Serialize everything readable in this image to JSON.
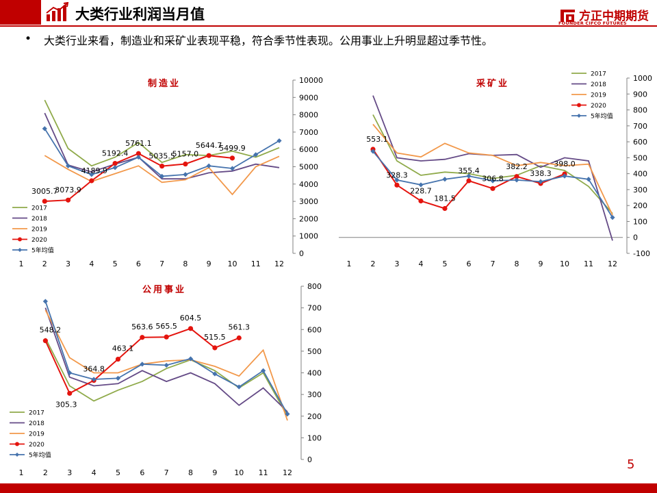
{
  "header": {
    "title": "大类行业利润当月值",
    "page_number": "5"
  },
  "logo": {
    "cn": "方正中期期货",
    "en": "FOUNDER CIFCO FUTURES"
  },
  "bullet": {
    "symbol": "•",
    "text": "大类行业来看，制造业和采矿业表现平稳，符合季节性表现。公用事业上升明显超过季节性。"
  },
  "colors": {
    "y2017": "#8faa4a",
    "y2018": "#644a86",
    "y2019": "#f2984a",
    "y2020": "#e4140e",
    "avg": "#4573ad",
    "accent": "#c00000"
  },
  "chart_data": [
    {
      "type": "line",
      "title": "制造业",
      "categories": [
        "1",
        "2",
        "3",
        "4",
        "5",
        "6",
        "7",
        "8",
        "9",
        "10",
        "11",
        "12"
      ],
      "ylim": [
        0,
        10000
      ],
      "yticks": [
        "0",
        "1000",
        "2000",
        "3000",
        "4000",
        "5000",
        "6000",
        "7000",
        "8000",
        "9000",
        "10000"
      ],
      "legend": "bottom-left",
      "series": [
        {
          "name": "2017",
          "values": [
            null,
            8850,
            6050,
            5050,
            5550,
            6400,
            5250,
            5700,
            5650,
            5900,
            5550,
            6100
          ]
        },
        {
          "name": "2018",
          "values": [
            null,
            8100,
            5100,
            4700,
            5150,
            5550,
            4300,
            4300,
            4650,
            4750,
            5150,
            4950
          ]
        },
        {
          "name": "2019",
          "values": [
            null,
            5650,
            4850,
            4150,
            4600,
            5050,
            4100,
            4250,
            4950,
            3400,
            5000,
            5600
          ]
        },
        {
          "name": "2020",
          "values": [
            null,
            3005.7,
            3073.9,
            4189.9,
            5192.4,
            5761.1,
            5035.5,
            5157.0,
            5644.7,
            5499.9,
            null,
            null
          ],
          "labels": [
            "",
            "3005.7",
            "3073.9",
            "4189.9",
            "5192.4",
            "5761.1",
            "5035.5",
            "5157.0",
            "5644.7",
            "5499.9",
            "",
            ""
          ]
        },
        {
          "name": "5年均值",
          "values": [
            null,
            7200,
            5050,
            4550,
            4950,
            5550,
            4450,
            4550,
            5050,
            4900,
            5700,
            6500
          ]
        }
      ]
    },
    {
      "type": "line",
      "title": "采矿业",
      "categories": [
        "1",
        "2",
        "3",
        "4",
        "5",
        "6",
        "7",
        "8",
        "9",
        "10",
        "11",
        "12"
      ],
      "ylim": [
        -100,
        1000
      ],
      "yticks": [
        "-100",
        "0",
        "100",
        "200",
        "300",
        "400",
        "500",
        "600",
        "700",
        "800",
        "900",
        "1000"
      ],
      "legend": "top-right",
      "series": [
        {
          "name": "2017",
          "values": [
            null,
            770,
            480,
            390,
            410,
            400,
            370,
            390,
            450,
            420,
            320,
            150
          ]
        },
        {
          "name": "2018",
          "values": [
            null,
            890,
            500,
            480,
            490,
            525,
            515,
            520,
            440,
            500,
            480,
            -20
          ]
        },
        {
          "name": "2019",
          "values": [
            null,
            710,
            530,
            505,
            590,
            530,
            515,
            450,
            470,
            450,
            460,
            140
          ]
        },
        {
          "name": "2020",
          "values": [
            null,
            553.1,
            328.3,
            228.7,
            181.5,
            355.4,
            306.8,
            382.2,
            338.3,
            398.0,
            null,
            null
          ],
          "labels": [
            "",
            "553.1",
            "328.3",
            "228.7",
            "181.5",
            "355.4",
            "306.8",
            "382.2",
            "338.3",
            "398.0",
            "",
            ""
          ]
        },
        {
          "name": "5年均值",
          "values": [
            null,
            540,
            360,
            330,
            365,
            385,
            355,
            360,
            350,
            385,
            365,
            125
          ]
        }
      ]
    },
    {
      "type": "line",
      "title": "公用事业",
      "categories": [
        "1",
        "2",
        "3",
        "4",
        "5",
        "6",
        "7",
        "8",
        "9",
        "10",
        "11",
        "12"
      ],
      "ylim": [
        0,
        800
      ],
      "yticks": [
        "0",
        "100",
        "200",
        "300",
        "400",
        "500",
        "600",
        "700",
        "800"
      ],
      "legend": "bottom-left",
      "series": [
        {
          "name": "2017",
          "values": [
            null,
            560,
            340,
            270,
            320,
            360,
            420,
            460,
            410,
            330,
            400,
            200
          ]
        },
        {
          "name": "2018",
          "values": [
            null,
            700,
            380,
            340,
            350,
            410,
            360,
            400,
            350,
            250,
            330,
            220
          ]
        },
        {
          "name": "2019",
          "values": [
            null,
            690,
            470,
            400,
            400,
            440,
            455,
            460,
            430,
            385,
            505,
            180
          ]
        },
        {
          "name": "2020",
          "values": [
            null,
            548.2,
            305.3,
            364.8,
            463.1,
            563.6,
            565.5,
            604.5,
            515.5,
            561.3,
            null,
            null
          ],
          "labels": [
            "",
            "548.2",
            "305.3",
            "364.8",
            "463.1",
            "563.6",
            "565.5",
            "604.5",
            "515.5",
            "561.3",
            "",
            ""
          ]
        },
        {
          "name": "5年均值",
          "values": [
            null,
            730,
            400,
            370,
            375,
            440,
            435,
            465,
            395,
            335,
            410,
            210
          ]
        }
      ]
    }
  ]
}
